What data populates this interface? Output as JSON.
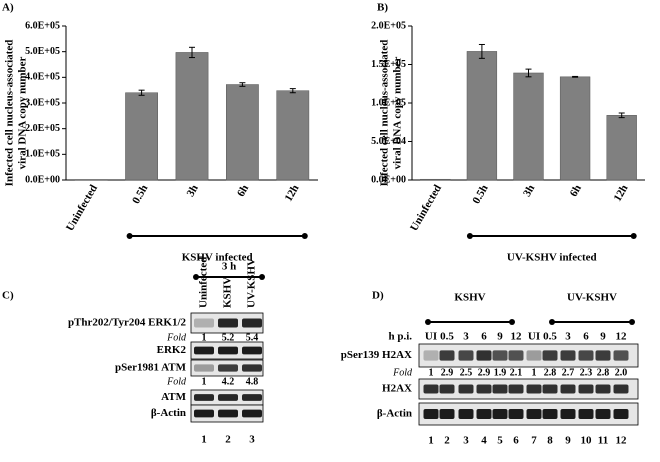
{
  "chart_data": [
    {
      "type": "bar",
      "panel": "A)",
      "ylabel": [
        "Infected cell nucleus-associated",
        "viral DNA copy number"
      ],
      "categories": [
        "Uninfected",
        "0.5h",
        "3h",
        "6h",
        "12h"
      ],
      "values": [
        2000,
        340000,
        497000,
        372000,
        348000
      ],
      "errors": [
        0,
        10000,
        20000,
        7000,
        8000
      ],
      "color": "#808080",
      "group_label": "KSHV infected",
      "ylim": [
        0,
        600000
      ],
      "yticks": [
        {
          "value": 0,
          "label": "0.0E+00"
        },
        {
          "value": 100000,
          "label": "1.0E+05"
        },
        {
          "value": 200000,
          "label": "2.0E+05"
        },
        {
          "value": 300000,
          "label": "3.0E+05"
        },
        {
          "value": 400000,
          "label": "4.0E+05"
        },
        {
          "value": 500000,
          "label": "5.0E+05"
        },
        {
          "value": 600000,
          "label": "6.0E+05"
        }
      ]
    },
    {
      "type": "bar",
      "panel": "B)",
      "ylabel": [
        "Infected cell nucleus-associated",
        "viral DNA copy number"
      ],
      "categories": [
        "Uninfected",
        "0.5h",
        "3h",
        "6h",
        "12h"
      ],
      "values": [
        1000,
        167000,
        139000,
        134000,
        84000
      ],
      "errors": [
        0,
        9000,
        5000,
        500,
        3000
      ],
      "color": "#808080",
      "group_label": "UV-KSHV infected",
      "ylim": [
        0,
        200000
      ],
      "yticks": [
        {
          "value": 0,
          "label": "0.0E+00"
        },
        {
          "value": 50000,
          "label": "5.0E+04"
        },
        {
          "value": 100000,
          "label": "1.0E+05"
        },
        {
          "value": 150000,
          "label": "1.5E+05"
        },
        {
          "value": 200000,
          "label": "2.0E+05"
        }
      ]
    }
  ],
  "blot_c": {
    "panel": "C)",
    "time": "3 h",
    "lanes": [
      "Uninfected",
      "KSHV",
      "UV-KSHV"
    ],
    "rows": [
      "pThr202/Tyr204 ERK1/2",
      "ERK2",
      "pSer1981 ATM",
      "ATM",
      "β-Actin"
    ],
    "fold_label": "Fold",
    "fold_erk": [
      "1",
      "5.2",
      "5.4"
    ],
    "fold_atm": [
      "1",
      "4.2",
      "4.8"
    ],
    "lane_numbers": [
      "1",
      "2",
      "3"
    ]
  },
  "blot_d": {
    "panel": "D)",
    "groups": [
      "KSHV",
      "UV-KSHV"
    ],
    "time_label": "h p.i.",
    "lanes": [
      "UI",
      "0.5",
      "3",
      "6",
      "9",
      "12",
      "UI",
      "0.5",
      "3",
      "6",
      "9",
      "12"
    ],
    "rows": [
      "pSer139 H2AX",
      "H2AX",
      "β-Actin"
    ],
    "fold_label": "Fold",
    "fold": [
      "1",
      "2.9",
      "2.5",
      "2.9",
      "1.9",
      "2.1",
      "1",
      "2.8",
      "2.7",
      "2.3",
      "2.8",
      "2.0"
    ],
    "lane_numbers": [
      "1",
      "2",
      "3",
      "4",
      "5",
      "6",
      "7",
      "8",
      "9",
      "10",
      "11",
      "12"
    ]
  }
}
